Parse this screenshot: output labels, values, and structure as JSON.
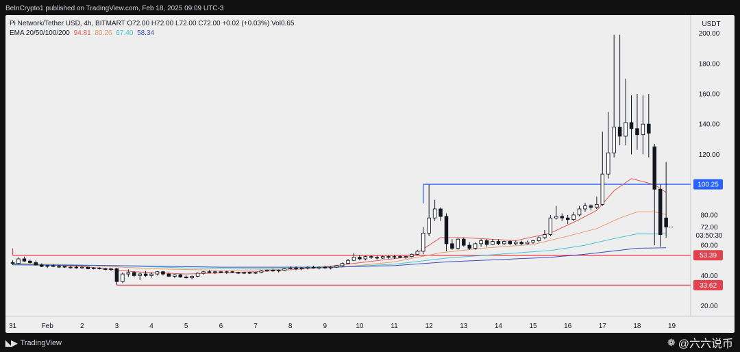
{
  "header": {
    "published": "BeInCrypto1 published on TradingView.com, Feb 18, 2025 09:09 UTC-3"
  },
  "legend": {
    "symbol_line": "Pi Network/Tether USD, 4h, BITMART  O72.00  H72.00  L72.00  C72.00  +0.02 (+0.03%)  Vol0.65",
    "ema_label": "EMA 20/50/100/200",
    "ema20": "94.81",
    "ema50": "80.26",
    "ema100": "67.40",
    "ema200": "58.34"
  },
  "footer": {
    "logo_text": "TradingView",
    "watermark": "@六六说币"
  },
  "colors": {
    "ema20": "#e05a55",
    "ema50": "#e99a6e",
    "ema100": "#45c6d6",
    "ema200": "#3b4cc0",
    "resistance": "#2962ff",
    "support": "#e0434f"
  },
  "chart_data": {
    "type": "candlestick",
    "title": "Pi Network/Tether USD, 4h, BITMART",
    "currency": "USDT",
    "ylim": [
      13,
      212
    ],
    "y_ticks": [
      20,
      40,
      60,
      80,
      100,
      120,
      140,
      160,
      180,
      200
    ],
    "y_tick_labels": [
      "20.00",
      "40.00",
      "60.00",
      "80.00",
      "100.00",
      "120.00",
      "140.00",
      "160.00",
      "180.00",
      "200.00"
    ],
    "x_range": [
      "Jan 30 19:00",
      "Feb 19 13:00"
    ],
    "x_ticks": [
      "Jan 31",
      "Feb 1",
      "Feb 2",
      "Feb 3",
      "Feb 4",
      "Feb 5",
      "Feb 6",
      "Feb 7",
      "Feb 8",
      "Feb 9",
      "Feb 10",
      "Feb 11",
      "Feb 12",
      "Feb 13",
      "Feb 14",
      "Feb 15",
      "Feb 16",
      "Feb 17",
      "Feb 18",
      "Feb 19"
    ],
    "x_tick_labels": [
      "31",
      "Feb",
      "2",
      "3",
      "4",
      "5",
      "6",
      "7",
      "8",
      "9",
      "10",
      "11",
      "12",
      "13",
      "14",
      "15",
      "16",
      "17",
      "18",
      "19"
    ],
    "price_lines": [
      {
        "value": 100.25,
        "label": "100.25",
        "color": "#2962ff",
        "start": "Feb 11 20:00"
      },
      {
        "value": 53.39,
        "label": "53.39",
        "color": "#e0434f",
        "start": "Jan 31 00:00"
      },
      {
        "value": 33.62,
        "label": "33.62",
        "color": "#e0434f",
        "start": "Feb 3 00:00"
      }
    ],
    "current_price": {
      "label": "72.00",
      "countdown": "03:50:30",
      "value": 72
    },
    "candles": [
      [
        "Jan 31 00:00",
        48.5,
        50,
        47,
        48
      ],
      [
        "Jan 31 04:00",
        48,
        52,
        47.5,
        51
      ],
      [
        "Jan 31 08:00",
        51,
        52.5,
        49,
        49.5
      ],
      [
        "Jan 31 12:00",
        49.5,
        50.5,
        48,
        48.5
      ],
      [
        "Jan 31 16:00",
        48.5,
        50,
        46.5,
        47
      ],
      [
        "Jan 31 20:00",
        47,
        48,
        45.5,
        46
      ],
      [
        "Feb 1 00:00",
        46,
        47,
        45,
        46.5
      ],
      [
        "Feb 1 04:00",
        46.5,
        47.5,
        45.5,
        46
      ],
      [
        "Feb 1 08:00",
        46,
        47,
        45,
        46
      ],
      [
        "Feb 1 12:00",
        46,
        46.5,
        45,
        45.5
      ],
      [
        "Feb 1 16:00",
        45.5,
        46.5,
        44.5,
        45.5
      ],
      [
        "Feb 1 20:00",
        45.5,
        46.5,
        44.5,
        45
      ],
      [
        "Feb 2 00:00",
        45,
        46,
        44.5,
        45.5
      ],
      [
        "Feb 2 04:00",
        45.5,
        46,
        44,
        44.5
      ],
      [
        "Feb 2 08:00",
        44.5,
        45.5,
        44,
        45
      ],
      [
        "Feb 2 12:00",
        45,
        45.5,
        44,
        44.5
      ],
      [
        "Feb 2 16:00",
        44.5,
        45,
        43.5,
        44
      ],
      [
        "Feb 2 20:00",
        44,
        45,
        43,
        44.5
      ],
      [
        "Feb 3 00:00",
        44.5,
        45,
        34,
        36
      ],
      [
        "Feb 3 04:00",
        36,
        42,
        35,
        41
      ],
      [
        "Feb 3 08:00",
        41,
        44,
        39,
        42
      ],
      [
        "Feb 3 12:00",
        42,
        43,
        39,
        40
      ],
      [
        "Feb 3 16:00",
        40,
        42,
        37,
        41
      ],
      [
        "Feb 3 20:00",
        41,
        43,
        39,
        40
      ],
      [
        "Feb 4 00:00",
        40,
        42,
        38.5,
        41
      ],
      [
        "Feb 4 04:00",
        41,
        43,
        40,
        42.5
      ],
      [
        "Feb 4 08:00",
        42.5,
        43,
        40,
        41
      ],
      [
        "Feb 4 12:00",
        41,
        42,
        39,
        39.5
      ],
      [
        "Feb 4 16:00",
        39.5,
        41,
        38.5,
        40.5
      ],
      [
        "Feb 4 20:00",
        40.5,
        41,
        38.5,
        39
      ],
      [
        "Feb 5 00:00",
        39,
        40,
        38,
        38.5
      ],
      [
        "Feb 5 04:00",
        38.5,
        40,
        37.5,
        39.5
      ],
      [
        "Feb 5 08:00",
        39.5,
        42,
        39,
        41.5
      ],
      [
        "Feb 5 12:00",
        41.5,
        43,
        40.5,
        42.5
      ],
      [
        "Feb 5 16:00",
        42.5,
        43.5,
        41.5,
        42
      ],
      [
        "Feb 5 20:00",
        42,
        43,
        41,
        42.5
      ],
      [
        "Feb 6 00:00",
        42.5,
        43,
        41.5,
        42
      ],
      [
        "Feb 6 04:00",
        42,
        43,
        41,
        42.5
      ],
      [
        "Feb 6 08:00",
        42.5,
        43,
        41.5,
        42
      ],
      [
        "Feb 6 12:00",
        42,
        42.5,
        41,
        41.5
      ],
      [
        "Feb 6 16:00",
        41.5,
        42.5,
        41,
        42
      ],
      [
        "Feb 6 20:00",
        42,
        42.5,
        41,
        41.5
      ],
      [
        "Feb 7 00:00",
        41.5,
        42.5,
        41,
        42
      ],
      [
        "Feb 7 04:00",
        42,
        43.5,
        41.5,
        43
      ],
      [
        "Feb 7 08:00",
        43,
        44,
        42.5,
        43.5
      ],
      [
        "Feb 7 12:00",
        43.5,
        44.5,
        42.5,
        43
      ],
      [
        "Feb 7 16:00",
        43,
        44,
        42,
        43.5
      ],
      [
        "Feb 7 20:00",
        43.5,
        45,
        43,
        44.5
      ],
      [
        "Feb 8 00:00",
        44.5,
        46,
        44,
        45
      ],
      [
        "Feb 8 04:00",
        45,
        46,
        43.5,
        44.5
      ],
      [
        "Feb 8 08:00",
        44.5,
        45.5,
        43.5,
        45
      ],
      [
        "Feb 8 12:00",
        45,
        46,
        44,
        45.5
      ],
      [
        "Feb 8 16:00",
        45.5,
        46.5,
        44.5,
        45
      ],
      [
        "Feb 8 20:00",
        45,
        46,
        44,
        45.5
      ],
      [
        "Feb 9 00:00",
        45.5,
        46.5,
        44.5,
        45
      ],
      [
        "Feb 9 04:00",
        45,
        46,
        44,
        45.5
      ],
      [
        "Feb 9 08:00",
        45.5,
        47,
        45,
        46.5
      ],
      [
        "Feb 9 12:00",
        46.5,
        48.5,
        46,
        48
      ],
      [
        "Feb 9 16:00",
        48,
        51,
        47.5,
        50
      ],
      [
        "Feb 9 20:00",
        50,
        55,
        49.5,
        52
      ],
      [
        "Feb 10 00:00",
        52,
        53.5,
        50,
        51
      ],
      [
        "Feb 10 04:00",
        51,
        53,
        50,
        52.5
      ],
      [
        "Feb 10 08:00",
        52.5,
        53.5,
        51,
        52
      ],
      [
        "Feb 10 12:00",
        52,
        53,
        50.5,
        51.5
      ],
      [
        "Feb 10 16:00",
        51.5,
        53,
        51,
        52.5
      ],
      [
        "Feb 10 20:00",
        52.5,
        53.5,
        51,
        52
      ],
      [
        "Feb 11 00:00",
        52,
        53.5,
        51,
        52.5
      ],
      [
        "Feb 11 04:00",
        52.5,
        53.5,
        51.5,
        52
      ],
      [
        "Feb 11 08:00",
        52,
        53,
        51,
        52.5
      ],
      [
        "Feb 11 12:00",
        52.5,
        54.5,
        52,
        54
      ],
      [
        "Feb 11 16:00",
        54,
        57,
        53.5,
        56
      ],
      [
        "Feb 11 20:00",
        56,
        72,
        54,
        68
      ],
      [
        "Feb 12 00:00",
        68,
        100,
        66,
        78
      ],
      [
        "Feb 12 04:00",
        78,
        90,
        76,
        84
      ],
      [
        "Feb 12 08:00",
        84,
        85,
        76,
        79
      ],
      [
        "Feb 12 12:00",
        79,
        81,
        56,
        61
      ],
      [
        "Feb 12 16:00",
        61,
        64,
        57,
        58
      ],
      [
        "Feb 12 20:00",
        58,
        65,
        57,
        64
      ],
      [
        "Feb 13 00:00",
        64,
        65,
        59,
        60
      ],
      [
        "Feb 13 04:00",
        60,
        62,
        57,
        58
      ],
      [
        "Feb 13 08:00",
        58,
        62,
        57,
        61
      ],
      [
        "Feb 13 12:00",
        61,
        64,
        59,
        63
      ],
      [
        "Feb 13 16:00",
        63,
        64,
        59,
        60.5
      ],
      [
        "Feb 13 20:00",
        60.5,
        64,
        60,
        62.5
      ],
      [
        "Feb 14 00:00",
        62.5,
        64,
        60,
        61
      ],
      [
        "Feb 14 04:00",
        61,
        63,
        60,
        62.5
      ],
      [
        "Feb 14 08:00",
        62.5,
        63.5,
        60,
        61
      ],
      [
        "Feb 14 12:00",
        61,
        63,
        60,
        62
      ],
      [
        "Feb 14 16:00",
        62,
        63,
        60,
        61
      ],
      [
        "Feb 14 20:00",
        61,
        63,
        60.5,
        62
      ],
      [
        "Feb 15 00:00",
        62,
        63.5,
        61,
        63
      ],
      [
        "Feb 15 04:00",
        63,
        66,
        62,
        65
      ],
      [
        "Feb 15 08:00",
        65,
        70,
        64,
        67
      ],
      [
        "Feb 15 12:00",
        67,
        80,
        66,
        78
      ],
      [
        "Feb 15 16:00",
        78,
        86,
        77,
        79
      ],
      [
        "Feb 15 20:00",
        79,
        81,
        76,
        78
      ],
      [
        "Feb 16 00:00",
        78,
        80,
        74,
        77
      ],
      [
        "Feb 16 04:00",
        77,
        82,
        76,
        80
      ],
      [
        "Feb 16 08:00",
        80,
        86,
        79,
        84
      ],
      [
        "Feb 16 12:00",
        84,
        88,
        82,
        86
      ],
      [
        "Feb 16 16:00",
        86,
        87,
        83,
        85
      ],
      [
        "Feb 16 20:00",
        85,
        92,
        84,
        87
      ],
      [
        "Feb 17 00:00",
        87,
        135,
        86,
        107
      ],
      [
        "Feb 17 04:00",
        107,
        148,
        104,
        121
      ],
      [
        "Feb 17 08:00",
        121,
        199,
        118,
        138
      ],
      [
        "Feb 17 12:00",
        138,
        199,
        126,
        132
      ],
      [
        "Feb 17 16:00",
        132,
        170,
        126,
        141
      ],
      [
        "Feb 17 20:00",
        141,
        159,
        120,
        137
      ],
      [
        "Feb 18 00:00",
        137,
        160,
        123,
        133
      ],
      [
        "Feb 18 04:00",
        133,
        159,
        120,
        140
      ],
      [
        "Feb 18 08:00",
        140,
        160,
        118,
        134
      ],
      [
        "Feb 18 12:00",
        125,
        127,
        60,
        97
      ],
      [
        "Feb 18 16:00",
        97,
        100,
        59,
        67
      ],
      [
        "Feb 18 20:00",
        78,
        115,
        65,
        72
      ]
    ],
    "ema_series": [
      {
        "name": "EMA 20",
        "value": "94.81",
        "points": [
          [
            "Jan 31 00:00",
            48
          ],
          [
            "Feb 2 00:00",
            46
          ],
          [
            "Feb 3 12:00",
            42.5
          ],
          [
            "Feb 5 00:00",
            41
          ],
          [
            "Feb 7 00:00",
            42.5
          ],
          [
            "Feb 8 12:00",
            44.5
          ],
          [
            "Feb 9 20:00",
            48
          ],
          [
            "Feb 11 12:00",
            52.5
          ],
          [
            "Feb 12 08:00",
            65
          ],
          [
            "Feb 13 00:00",
            65
          ],
          [
            "Feb 14 12:00",
            63
          ],
          [
            "Feb 15 12:00",
            68
          ],
          [
            "Feb 16 08:00",
            77
          ],
          [
            "Feb 16 20:00",
            83
          ],
          [
            "Feb 17 08:00",
            96
          ],
          [
            "Feb 17 20:00",
            104
          ],
          [
            "Feb 18 12:00",
            100
          ],
          [
            "Feb 18 20:00",
            94.81
          ]
        ]
      },
      {
        "name": "EMA 50",
        "value": "80.26",
        "points": [
          [
            "Jan 31 00:00",
            48
          ],
          [
            "Feb 2 00:00",
            47
          ],
          [
            "Feb 4 00:00",
            44.5
          ],
          [
            "Feb 6 00:00",
            43.5
          ],
          [
            "Feb 8 00:00",
            44
          ],
          [
            "Feb 9 12:00",
            45.5
          ],
          [
            "Feb 11 00:00",
            49
          ],
          [
            "Feb 12 08:00",
            55
          ],
          [
            "Feb 13 12:00",
            58
          ],
          [
            "Feb 15 00:00",
            60.5
          ],
          [
            "Feb 16 00:00",
            66
          ],
          [
            "Feb 16 20:00",
            71
          ],
          [
            "Feb 17 12:00",
            78
          ],
          [
            "Feb 18 00:00",
            82
          ],
          [
            "Feb 18 12:00",
            82
          ],
          [
            "Feb 18 20:00",
            80.26
          ]
        ]
      },
      {
        "name": "EMA 100",
        "value": "67.40",
        "points": [
          [
            "Jan 31 00:00",
            47.5
          ],
          [
            "Feb 3 00:00",
            46.5
          ],
          [
            "Feb 5 00:00",
            45
          ],
          [
            "Feb 7 00:00",
            44.5
          ],
          [
            "Feb 9 00:00",
            45
          ],
          [
            "Feb 11 00:00",
            47.5
          ],
          [
            "Feb 12 12:00",
            51.5
          ],
          [
            "Feb 14 00:00",
            54
          ],
          [
            "Feb 15 12:00",
            56.5
          ],
          [
            "Feb 16 12:00",
            60
          ],
          [
            "Feb 17 06:00",
            64
          ],
          [
            "Feb 18 00:00",
            67.5
          ],
          [
            "Feb 18 20:00",
            67.4
          ]
        ]
      },
      {
        "name": "EMA 200",
        "value": "58.34",
        "points": [
          [
            "Jan 31 00:00",
            47
          ],
          [
            "Feb 3 00:00",
            46.5
          ],
          [
            "Feb 6 00:00",
            45.5
          ],
          [
            "Feb 9 00:00",
            45.5
          ],
          [
            "Feb 11 00:00",
            46.5
          ],
          [
            "Feb 12 12:00",
            49
          ],
          [
            "Feb 14 00:00",
            50.5
          ],
          [
            "Feb 15 12:00",
            52
          ],
          [
            "Feb 16 12:00",
            54
          ],
          [
            "Feb 17 06:00",
            56
          ],
          [
            "Feb 18 00:00",
            58
          ],
          [
            "Feb 18 20:00",
            58.34
          ]
        ]
      }
    ]
  }
}
